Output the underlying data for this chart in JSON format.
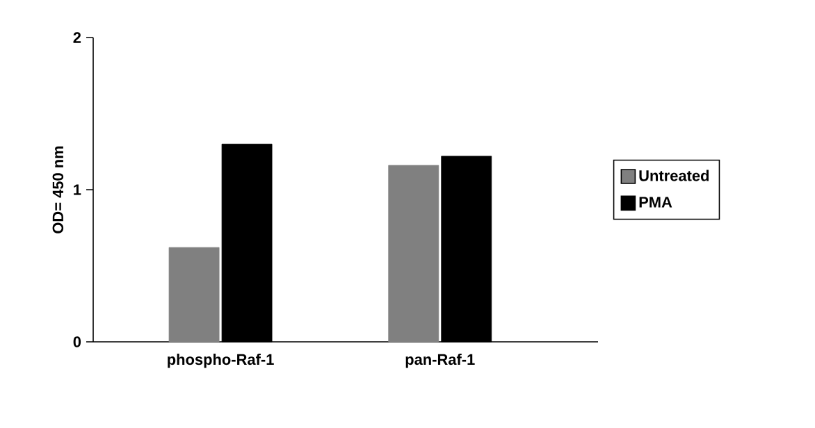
{
  "chart_data": {
    "type": "bar",
    "ylabel": "OD= 450 nm",
    "categories": [
      "phospho-Raf-1",
      "pan-Raf-1"
    ],
    "series": [
      {
        "name": "Untreated",
        "color": "#808080",
        "values": [
          0.62,
          1.16
        ]
      },
      {
        "name": "PMA",
        "color": "#000000",
        "values": [
          1.3,
          1.22
        ]
      }
    ],
    "ylim": [
      0,
      2
    ],
    "yticks": [
      0,
      1,
      2
    ],
    "grid": false,
    "legend": "right"
  }
}
